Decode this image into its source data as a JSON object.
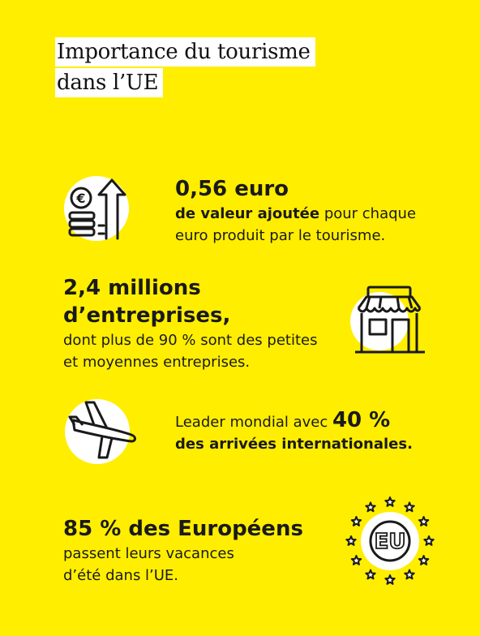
{
  "title": {
    "line1": "Importance du tourisme",
    "line2": "dans l’UE"
  },
  "colors": {
    "background": "#ffee00",
    "ink": "#1a1a1a",
    "circle": "#ffffff"
  },
  "stats": [
    {
      "icon": "euro-coins-arrow-icon",
      "headline": "0,56 euro",
      "bold_text": "de valeur ajoutée",
      "text": " pour chaque euro produit par le tourisme."
    },
    {
      "icon": "shop-icon",
      "headline_line1": "2,4 millions",
      "headline_line2": "d’entreprises,",
      "text_line1": "dont plus de 90 % sont des petites",
      "text_line2": "et moyennes entreprises."
    },
    {
      "icon": "airplane-icon",
      "text_prefix": "Leader mondial avec ",
      "highlight": "40 %",
      "bold_text": "des arrivées internationales."
    },
    {
      "icon": "eu-stars-icon",
      "headline": "85 % des Européens",
      "text_line1": "passent leurs vacances",
      "text_line2": "d’été dans l’UE."
    }
  ],
  "eu_badge": "EU"
}
